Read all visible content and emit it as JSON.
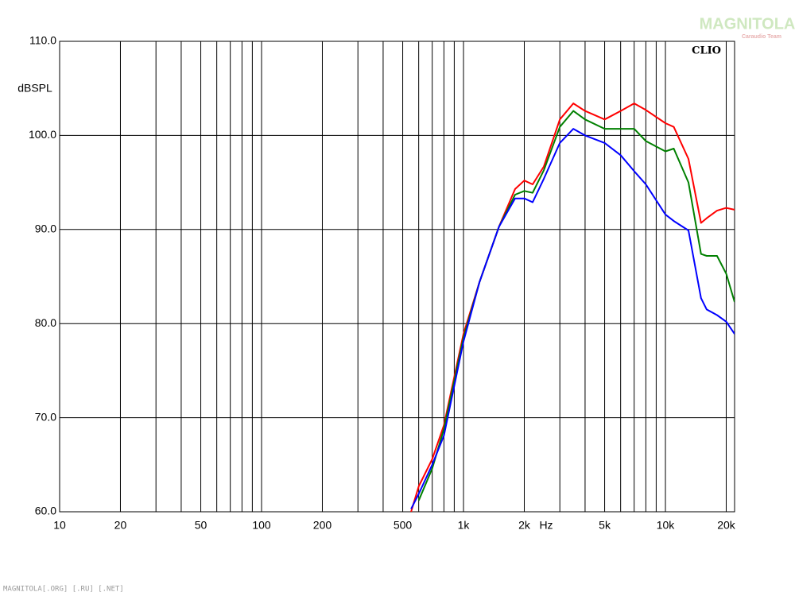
{
  "chart_data": {
    "type": "line",
    "y_label": "dBSPL",
    "x_label": "Hz",
    "brand": "CLIO",
    "watermark": "MAGNITOLA",
    "watermark_sub": "Caraudio Team",
    "footer": "MAGNITOLA[.ORG] [.RU] [.NET]",
    "log_x": true,
    "grid": true,
    "xlim": [
      10,
      22000
    ],
    "ylim": [
      60,
      110
    ],
    "xticks": [
      10,
      20,
      50,
      100,
      200,
      500,
      {
        "value": 1000,
        "label": "1k"
      },
      {
        "value": 2000,
        "label": "2k"
      },
      {
        "value": 5000,
        "label": "5k"
      },
      {
        "value": 10000,
        "label": "10k"
      },
      {
        "value": 20000,
        "label": "20k"
      }
    ],
    "xgrid": [
      10,
      20,
      30,
      40,
      50,
      60,
      70,
      80,
      90,
      100,
      200,
      300,
      400,
      500,
      600,
      700,
      800,
      900,
      1000,
      2000,
      3000,
      4000,
      5000,
      6000,
      7000,
      8000,
      9000,
      10000,
      20000
    ],
    "yticks": [
      {
        "value": 60,
        "label": "60.0"
      },
      {
        "value": 70,
        "label": "70.0"
      },
      {
        "value": 80,
        "label": "80.0"
      },
      {
        "value": 90,
        "label": "90.0"
      },
      {
        "value": 100,
        "label": "100.0"
      },
      {
        "value": 110,
        "label": "110.0"
      }
    ],
    "x": [
      550,
      600,
      700,
      800,
      1000,
      1200,
      1500,
      1800,
      2000,
      2200,
      2500,
      3000,
      3500,
      4000,
      5000,
      6000,
      7000,
      8000,
      10000,
      11000,
      13000,
      15000,
      16000,
      18000,
      20000,
      22000
    ],
    "series": [
      {
        "color": "#ff0000",
        "values": [
          60,
          62.7,
          65.6,
          69.2,
          78.9,
          84.4,
          90.3,
          94.3,
          95.2,
          94.8,
          96.7,
          101.7,
          103.4,
          102.6,
          101.7,
          102.6,
          103.4,
          102.7,
          101.3,
          100.9,
          97.5,
          90.7,
          91.2,
          92.0,
          92.3,
          92.1
        ]
      },
      {
        "color": "#008000",
        "values": [
          null,
          61.2,
          64.6,
          68.8,
          78.5,
          84.4,
          90.3,
          93.7,
          94.1,
          93.9,
          96.3,
          100.9,
          102.6,
          101.7,
          100.7,
          100.7,
          100.7,
          99.4,
          98.3,
          98.6,
          95.0,
          87.4,
          87.2,
          87.2,
          85.3,
          82.3
        ]
      },
      {
        "color": "#0000ff",
        "values": [
          60.3,
          61.9,
          65.0,
          68.1,
          78.1,
          84.4,
          90.3,
          93.3,
          93.3,
          92.9,
          95.4,
          99.2,
          100.7,
          100.0,
          99.2,
          97.9,
          96.2,
          94.8,
          91.6,
          90.9,
          89.9,
          82.7,
          81.5,
          80.9,
          80.2,
          78.9
        ]
      }
    ]
  }
}
